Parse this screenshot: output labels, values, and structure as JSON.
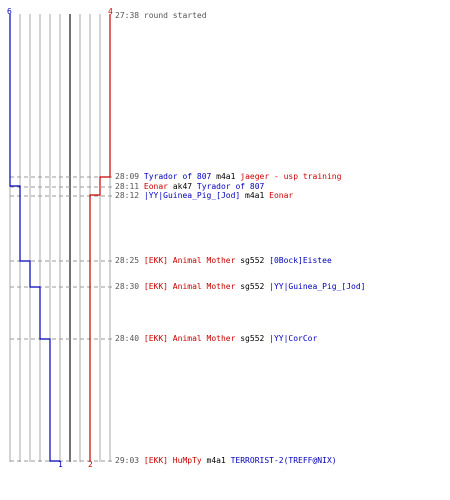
{
  "colors": {
    "ct": "#0000bb",
    "t": "#cc0000",
    "time": "#555555",
    "gridline": "#aaaaaa",
    "dash": "#999999",
    "round_bar": "#444444"
  },
  "counts": {
    "ct_start": "6",
    "t_start": "4",
    "ct_end": "1",
    "t_end": "2"
  },
  "events": [
    {
      "time": "27:38",
      "parts": [
        {
          "text": "round started",
          "team": "time"
        }
      ]
    },
    {
      "time": "28:09",
      "parts": [
        {
          "text": "Tyrador of 807",
          "team": "ct"
        },
        {
          "text": " m4a1 ",
          "team": "neutral"
        },
        {
          "text": "jaeger - usp training",
          "team": "t"
        }
      ]
    },
    {
      "time": "28:11",
      "parts": [
        {
          "text": "Eonar",
          "team": "t"
        },
        {
          "text": " ak47 ",
          "team": "neutral"
        },
        {
          "text": "Tyrador of 807",
          "team": "ct"
        }
      ]
    },
    {
      "time": "28:12",
      "parts": [
        {
          "text": "|YY|Guinea_Pig_[Jod]",
          "team": "ct"
        },
        {
          "text": " m4a1 ",
          "team": "neutral"
        },
        {
          "text": "Eonar",
          "team": "t"
        }
      ]
    },
    {
      "time": "28:25",
      "parts": [
        {
          "text": "[EKK] Animal Mother",
          "team": "t"
        },
        {
          "text": " sg552 ",
          "team": "neutral"
        },
        {
          "text": "[0Bock]Eistee",
          "team": "ct"
        }
      ]
    },
    {
      "time": "28:30",
      "parts": [
        {
          "text": "[EKK] Animal Mother",
          "team": "t"
        },
        {
          "text": " sg552 ",
          "team": "neutral"
        },
        {
          "text": "|YY|Guinea_Pig_[Jod]",
          "team": "ct"
        }
      ]
    },
    {
      "time": "28:40",
      "parts": [
        {
          "text": "[EKK] Animal Mother",
          "team": "t"
        },
        {
          "text": " sg552 ",
          "team": "neutral"
        },
        {
          "text": "|YY|CorCor",
          "team": "ct"
        }
      ]
    },
    {
      "time": "29:03",
      "parts": [
        {
          "text": "[EKK] HuMpTy",
          "team": "t"
        },
        {
          "text": " m4a1 ",
          "team": "neutral"
        },
        {
          "text": "TERRORIST-2(TREFF@NIX)",
          "team": "ct"
        }
      ]
    }
  ]
}
